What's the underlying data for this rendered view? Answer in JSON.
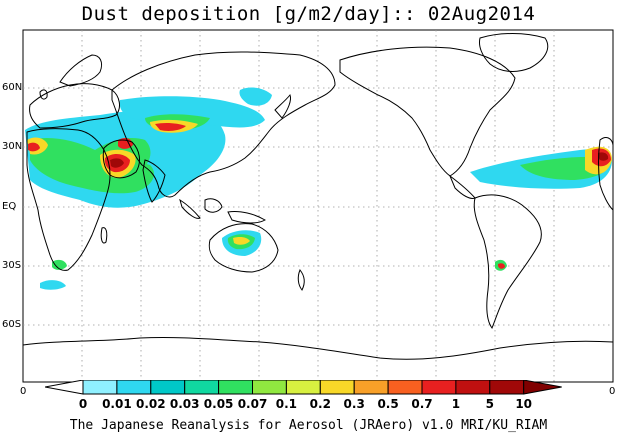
{
  "title": "Dust deposition [g/m2/day]:: 02Aug2014",
  "credit": "The Japanese Reanalysis for Aerosol (JRAero) v1.0 MRI/KU_RIAM",
  "lat_labels": [
    "60N",
    "30N",
    "EQ",
    "30S",
    "60S"
  ],
  "axis_edge_label": "0",
  "colorbar": {
    "labels": [
      "0",
      "0.01",
      "0.02",
      "0.03",
      "0.05",
      "0.07",
      "0.1",
      "0.2",
      "0.3",
      "0.5",
      "0.7",
      "1",
      "5",
      "10"
    ],
    "colors": [
      "#ffffff",
      "#8ff0ff",
      "#2fd8f0",
      "#00c8c8",
      "#10d8a0",
      "#30e060",
      "#90e840",
      "#d8f040",
      "#f8d828",
      "#f8a028",
      "#f86020",
      "#e82020",
      "#c01010",
      "#a00808",
      "#800000"
    ]
  },
  "dust_colors": {
    "low": "#2fd8f0",
    "mid": "#30e060",
    "high": "#f8d828",
    "very_high": "#e82020",
    "extreme": "#a00808"
  }
}
